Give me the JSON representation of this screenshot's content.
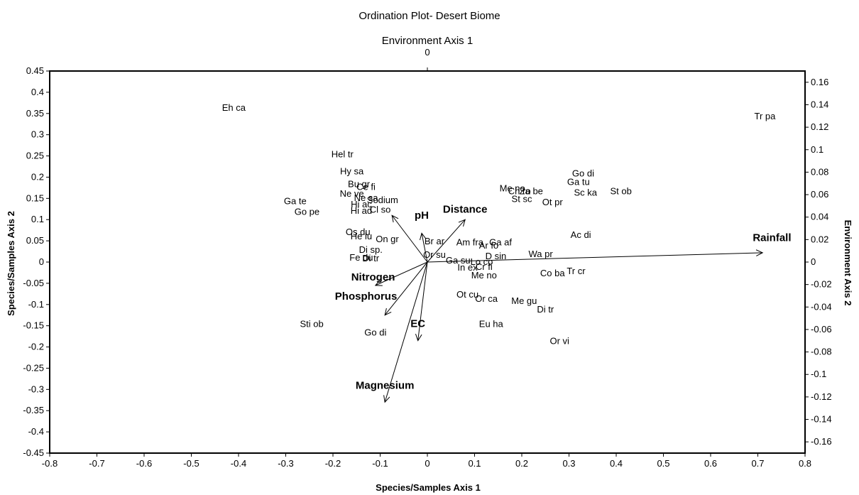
{
  "chart_data": {
    "type": "scatter",
    "title": "Ordination Plot- Desert Biome",
    "xlabel": "Species/Samples Axis 1",
    "ylabel": "Species/Samples Axis 2",
    "x2label": "Environment Axis 1",
    "y2label": "Environment Axis 2",
    "xlim": [
      -0.8,
      0.8
    ],
    "ylim": [
      -0.45,
      0.45
    ],
    "y2lim": [
      -0.17,
      0.17
    ],
    "grid": false,
    "x_ticks": [
      "-0.8",
      "-0.7",
      "-0.6",
      "-0.5",
      "-0.4",
      "-0.3",
      "-0.2",
      "-0.1",
      "0",
      "0.1",
      "0.2",
      "0.3",
      "0.4",
      "0.5",
      "0.6",
      "0.7",
      "0.8"
    ],
    "y_ticks": [
      "0.45",
      "0.4",
      "0.35",
      "0.3",
      "0.25",
      "0.2",
      "0.15",
      "0.1",
      "0.05",
      "0",
      "-0.05",
      "-0.1",
      "-0.15",
      "-0.2",
      "-0.25",
      "-0.3",
      "-0.35",
      "-0.4",
      "-0.45"
    ],
    "y2_ticks": [
      "0.16",
      "0.14",
      "0.12",
      "0.1",
      "0.08",
      "0.06",
      "0.04",
      "0.02",
      "0",
      "-0.02",
      "-0.04",
      "-0.06",
      "-0.08",
      "-0.1",
      "-0.12",
      "-0.14",
      "-0.16"
    ],
    "x2_ticks": [
      "0"
    ],
    "species": [
      {
        "label": "Eh ca",
        "x": -0.41,
        "y": 0.365
      },
      {
        "label": "Tr pa",
        "x": 0.715,
        "y": 0.345
      },
      {
        "label": "Hel tr",
        "x": -0.18,
        "y": 0.255
      },
      {
        "label": "Hy sa",
        "x": -0.16,
        "y": 0.215
      },
      {
        "label": "Bu gr",
        "x": -0.145,
        "y": 0.185
      },
      {
        "label": "Ce fi",
        "x": -0.13,
        "y": 0.178
      },
      {
        "label": "Ne ve",
        "x": -0.16,
        "y": 0.162
      },
      {
        "label": "Ne sa",
        "x": -0.13,
        "y": 0.152
      },
      {
        "label": "Hi ac",
        "x": -0.14,
        "y": 0.137
      },
      {
        "label": "Sodium",
        "x": -0.095,
        "y": 0.147
      },
      {
        "label": "Ga te",
        "x": -0.28,
        "y": 0.145
      },
      {
        "label": "Go pe",
        "x": -0.255,
        "y": 0.12
      },
      {
        "label": "Hi ad",
        "x": -0.14,
        "y": 0.122
      },
      {
        "label": "Cl so",
        "x": -0.1,
        "y": 0.125
      },
      {
        "label": "Os du",
        "x": -0.147,
        "y": 0.072
      },
      {
        "label": "He lu",
        "x": -0.14,
        "y": 0.062
      },
      {
        "label": "On gr",
        "x": -0.085,
        "y": 0.055
      },
      {
        "label": "Di sp.",
        "x": -0.12,
        "y": 0.03
      },
      {
        "label": "Fe du",
        "x": -0.14,
        "y": 0.012
      },
      {
        "label": "Di tr",
        "x": -0.12,
        "y": 0.01
      },
      {
        "label": "Br ar",
        "x": 0.015,
        "y": 0.05
      },
      {
        "label": "Or su",
        "x": 0.015,
        "y": 0.018
      },
      {
        "label": "Am fra",
        "x": 0.09,
        "y": 0.048
      },
      {
        "label": "Ar fo",
        "x": 0.13,
        "y": 0.04
      },
      {
        "label": "Ga af",
        "x": 0.155,
        "y": 0.048
      },
      {
        "label": "D sin",
        "x": 0.145,
        "y": 0.015
      },
      {
        "label": "Ga su",
        "x": 0.065,
        "y": 0.005
      },
      {
        "label": "Lo co",
        "x": 0.115,
        "y": 0.002
      },
      {
        "label": "In ex",
        "x": 0.085,
        "y": -0.012
      },
      {
        "label": "Cr fi",
        "x": 0.12,
        "y": -0.01
      },
      {
        "label": "Me no",
        "x": 0.12,
        "y": -0.03
      },
      {
        "label": "Ot cu",
        "x": 0.085,
        "y": -0.075
      },
      {
        "label": "Or ca",
        "x": 0.125,
        "y": -0.085
      },
      {
        "label": "Me gu",
        "x": 0.205,
        "y": -0.09
      },
      {
        "label": "Di tr",
        "x": 0.25,
        "y": -0.11
      },
      {
        "label": "Eu ha",
        "x": 0.135,
        "y": -0.145
      },
      {
        "label": "Or vi",
        "x": 0.28,
        "y": -0.185
      },
      {
        "label": "Wa pr",
        "x": 0.24,
        "y": 0.02
      },
      {
        "label": "Co ba",
        "x": 0.265,
        "y": -0.025
      },
      {
        "label": "Tr cr",
        "x": 0.315,
        "y": -0.02
      },
      {
        "label": "Ac di",
        "x": 0.325,
        "y": 0.065
      },
      {
        "label": "Me no",
        "x": 0.18,
        "y": 0.175
      },
      {
        "label": "Ch ro",
        "x": 0.195,
        "y": 0.168
      },
      {
        "label": "Za be",
        "x": 0.22,
        "y": 0.168
      },
      {
        "label": "St sc",
        "x": 0.2,
        "y": 0.15
      },
      {
        "label": "Ot pr",
        "x": 0.265,
        "y": 0.142
      },
      {
        "label": "Go di",
        "x": 0.33,
        "y": 0.21
      },
      {
        "label": "Ga tu",
        "x": 0.32,
        "y": 0.19
      },
      {
        "label": "Sc ka",
        "x": 0.335,
        "y": 0.165
      },
      {
        "label": "St ob",
        "x": 0.41,
        "y": 0.168
      },
      {
        "label": "Sti ob",
        "x": -0.245,
        "y": -0.145
      },
      {
        "label": "Go di",
        "x": -0.11,
        "y": -0.165
      }
    ],
    "vectors": [
      {
        "label": "Rainfall",
        "x": 0.71,
        "y": 0.022
      },
      {
        "label": "Distance",
        "x": 0.08,
        "y": 0.1
      },
      {
        "label": "pH",
        "x": -0.012,
        "y": 0.068
      },
      {
        "label": "Sodium",
        "x": -0.075,
        "y": 0.11
      },
      {
        "label": "Nitrogen",
        "x": -0.11,
        "y": -0.055
      },
      {
        "label": "Phosphorus",
        "x": -0.09,
        "y": -0.125
      },
      {
        "label": "EC",
        "x": -0.02,
        "y": -0.185
      },
      {
        "label": "Magnesium",
        "x": -0.09,
        "y": -0.33
      }
    ],
    "vector_labels": [
      {
        "label": "Rainfall",
        "x": 0.73,
        "y": 0.058
      },
      {
        "label": "Distance",
        "x": 0.08,
        "y": 0.125
      },
      {
        "label": "pH",
        "x": -0.012,
        "y": 0.11
      },
      {
        "label": "Nitrogen",
        "x": -0.115,
        "y": -0.035
      },
      {
        "label": "Phosphorus",
        "x": -0.13,
        "y": -0.08
      },
      {
        "label": "EC",
        "x": -0.02,
        "y": -0.145
      },
      {
        "label": "Magnesium",
        "x": -0.09,
        "y": -0.29
      }
    ]
  }
}
